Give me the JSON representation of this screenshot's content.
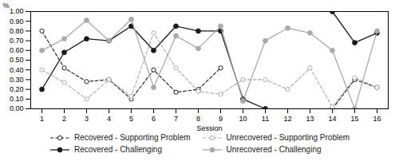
{
  "chart_data": {
    "type": "line",
    "x_label": "Session",
    "y_label": "%",
    "x": [
      1,
      2,
      3,
      4,
      5,
      6,
      7,
      8,
      9,
      10,
      11,
      12,
      13,
      14,
      15,
      16
    ],
    "series": [
      {
        "name": "Recovered - Supporting Problem",
        "color": "#1a1a1a",
        "line_style": "dashed",
        "marker": "open_circle",
        "values": [
          0.8,
          0.42,
          0.28,
          0.3,
          0.1,
          0.4,
          0.17,
          0.2,
          0.42,
          null,
          null,
          null,
          null,
          0.0,
          0.3,
          0.22
        ]
      },
      {
        "name": "Recovered - Challenging",
        "color": "#1a1a1a",
        "line_style": "solid",
        "marker": "circle",
        "values": [
          0.2,
          0.58,
          0.72,
          0.7,
          0.85,
          0.6,
          0.85,
          0.8,
          0.8,
          0.1,
          0.0,
          null,
          null,
          1.0,
          0.68,
          0.78
        ]
      },
      {
        "name": "Unrecovered - Supporting Problem",
        "color": "#aaaaaa",
        "line_style": "dashed",
        "marker": "open_circle",
        "values": [
          0.4,
          0.27,
          0.1,
          0.3,
          0.13,
          0.78,
          0.42,
          0.18,
          0.15,
          0.3,
          0.3,
          0.2,
          0.42,
          0.02,
          0.32,
          0.22
        ]
      },
      {
        "name": "Unrecovered - Challenging",
        "color": "#aaaaaa",
        "line_style": "solid",
        "marker": "circle",
        "values": [
          0.6,
          0.72,
          0.91,
          0.7,
          0.92,
          0.22,
          0.75,
          0.62,
          0.85,
          0.08,
          0.7,
          0.83,
          0.78,
          0.6,
          0.0,
          0.8
        ]
      }
    ],
    "xlim": [
      0.5,
      16.5
    ],
    "xticks": [
      1,
      2,
      3,
      4,
      5,
      6,
      7,
      8,
      9,
      10,
      11,
      12,
      13,
      14,
      15,
      16
    ],
    "ylim": [
      0.0,
      1.0
    ],
    "yticks": [
      {
        "value": 0.0,
        "label": "0.00"
      },
      {
        "value": 0.1,
        "label": "0.10"
      },
      {
        "value": 0.2,
        "label": "0.20"
      },
      {
        "value": 0.3,
        "label": "0.30"
      },
      {
        "value": 0.4,
        "label": "0.40"
      },
      {
        "value": 0.5,
        "label": "0.50"
      },
      {
        "value": 0.6,
        "label": "0.60"
      },
      {
        "value": 0.7,
        "label": "0.70"
      },
      {
        "value": 0.8,
        "label": "0.80"
      },
      {
        "value": 0.9,
        "label": "0.90"
      },
      {
        "value": 1.0,
        "label": "1.00"
      }
    ],
    "grid": false,
    "legend": "bottom"
  }
}
